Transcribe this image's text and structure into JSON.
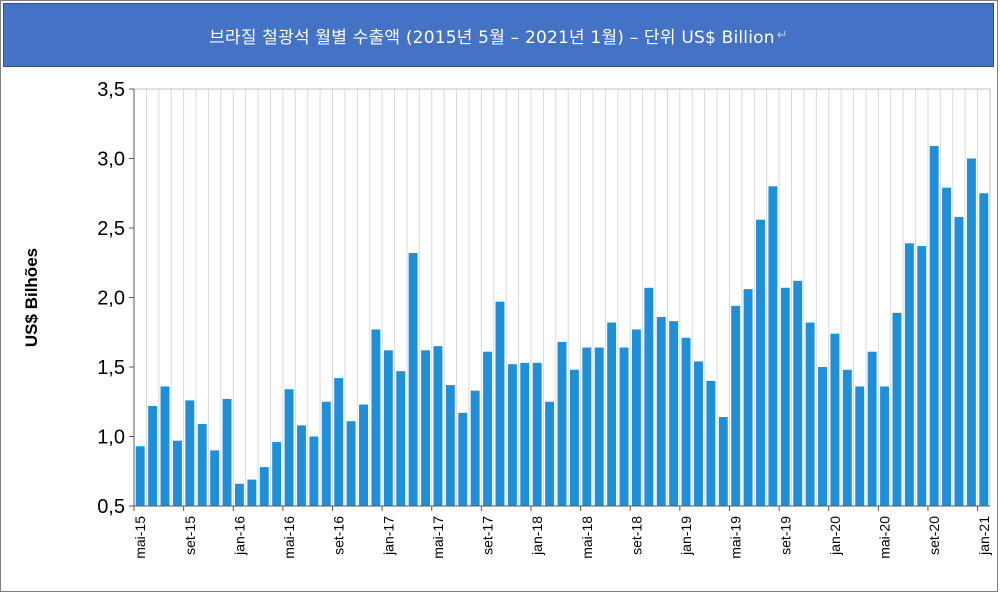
{
  "header": {
    "title": "브라질 철광석 월별 수출액 (2015년 5월 – 2021년 1월) – 단위 US$ Billion",
    "return_mark": "↵"
  },
  "chart_data": {
    "type": "bar",
    "xlabel": "",
    "ylabel": "US$ Bilhões",
    "ylim": [
      0.5,
      3.5
    ],
    "yticks": [
      0.5,
      1.0,
      1.5,
      2.0,
      2.5,
      3.0,
      3.5
    ],
    "ytick_labels": [
      "0,5",
      "1,0",
      "1,5",
      "2,0",
      "2,5",
      "3,0",
      "3,5"
    ],
    "grid": "vertical",
    "bar_color": "#1f8fd8",
    "categories": [
      "mai-15",
      "jun-15",
      "jul-15",
      "ago-15",
      "set-15",
      "out-15",
      "nov-15",
      "dez-15",
      "jan-16",
      "fev-16",
      "mar-16",
      "abr-16",
      "mai-16",
      "jun-16",
      "jul-16",
      "ago-16",
      "set-16",
      "out-16",
      "nov-16",
      "dez-16",
      "jan-17",
      "fev-17",
      "mar-17",
      "abr-17",
      "mai-17",
      "jun-17",
      "jul-17",
      "ago-17",
      "set-17",
      "out-17",
      "nov-17",
      "dez-17",
      "jan-18",
      "fev-18",
      "mar-18",
      "abr-18",
      "mai-18",
      "jun-18",
      "jul-18",
      "ago-18",
      "set-18",
      "out-18",
      "nov-18",
      "dez-18",
      "jan-19",
      "fev-19",
      "mar-19",
      "abr-19",
      "mai-19",
      "jun-19",
      "jul-19",
      "ago-19",
      "set-19",
      "out-19",
      "nov-19",
      "dez-19",
      "jan-20",
      "fev-20",
      "mar-20",
      "abr-20",
      "mai-20",
      "jun-20",
      "jul-20",
      "ago-20",
      "set-20",
      "out-20",
      "nov-20",
      "dez-20",
      "jan-21"
    ],
    "values": [
      0.93,
      1.22,
      1.36,
      0.97,
      1.26,
      1.09,
      0.9,
      1.27,
      0.66,
      0.69,
      0.78,
      0.96,
      1.34,
      1.08,
      1.0,
      1.25,
      1.42,
      1.11,
      1.23,
      1.77,
      1.62,
      1.47,
      2.32,
      1.62,
      1.65,
      1.37,
      1.17,
      1.33,
      1.61,
      1.97,
      1.52,
      1.53,
      1.53,
      1.25,
      1.68,
      1.48,
      1.64,
      1.64,
      1.82,
      1.64,
      1.77,
      2.07,
      1.86,
      1.83,
      1.71,
      1.54,
      1.4,
      1.14,
      1.94,
      2.06,
      2.56,
      2.8,
      2.07,
      2.12,
      1.82,
      1.5,
      1.74,
      1.48,
      1.36,
      1.61,
      1.36,
      1.89,
      2.39,
      2.37,
      3.09,
      2.79,
      2.58,
      3.0,
      2.75
    ],
    "shown_tick_labels": [
      "mai-15",
      "set-15",
      "jan-16",
      "mai-16",
      "set-16",
      "jan-17",
      "mai-17",
      "set-17",
      "jan-18",
      "mai-18",
      "set-18",
      "jan-19",
      "mai-19",
      "set-19",
      "jan-20",
      "mai-20",
      "set-20",
      "jan-21"
    ]
  }
}
